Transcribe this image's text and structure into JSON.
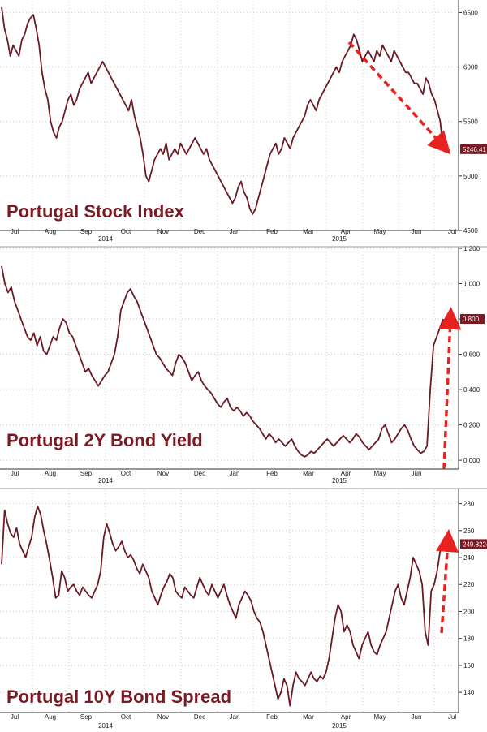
{
  "colors": {
    "line": "#6b1a24",
    "title": "#7a1a22",
    "arrow": "#e8231f",
    "label_bg": "#7a1a22",
    "grid": "#c9c9c9",
    "axis": "#333333"
  },
  "chart_data": [
    {
      "type": "line",
      "title": "Portugal Stock Index",
      "x_axis": {
        "months": [
          "Jul",
          "Aug",
          "Sep",
          "Oct",
          "Nov",
          "Dec",
          "Jan",
          "Feb",
          "Mar",
          "Apr",
          "May",
          "Jun",
          "Jul"
        ],
        "years": [
          "2014",
          "2015"
        ]
      },
      "ylim": [
        4500,
        6600
      ],
      "yticks": [
        "4500",
        "5000",
        "5500",
        "6000",
        "6500"
      ],
      "last_value_label": "5246.41",
      "annotation": "red dashed arrow pointing down from April peak to latest value",
      "series": [
        {
          "values": [
            6550,
            6350,
            6250,
            6100,
            6200,
            6150,
            6100,
            6250,
            6300,
            6400,
            6450,
            6480,
            6350,
            6200,
            5950,
            5800,
            5700,
            5500,
            5400,
            5350,
            5450,
            5500,
            5600,
            5700,
            5750,
            5650,
            5700,
            5800,
            5850,
            5900,
            5950,
            5850,
            5900,
            5950,
            6000,
            6050,
            6000,
            5950,
            5900,
            5850,
            5800,
            5750,
            5700,
            5650,
            5600,
            5700,
            5550,
            5450,
            5350,
            5200,
            5000,
            4950,
            5050,
            5150,
            5200,
            5250,
            5200,
            5300,
            5150,
            5200,
            5250,
            5200,
            5300,
            5250,
            5200,
            5250,
            5300,
            5350,
            5300,
            5250,
            5200,
            5250,
            5150,
            5100,
            5050,
            5000,
            4950,
            4900,
            4850,
            4800,
            4750,
            4800,
            4900,
            4950,
            4850,
            4800,
            4700,
            4650,
            4700,
            4800,
            4900,
            5000,
            5100,
            5200,
            5250,
            5300,
            5200,
            5250,
            5350,
            5300,
            5250,
            5350,
            5400,
            5450,
            5500,
            5550,
            5650,
            5700,
            5650,
            5600,
            5700,
            5750,
            5800,
            5850,
            5900,
            5950,
            6000,
            5950,
            6050,
            6100,
            6150,
            6200,
            6300,
            6250,
            6150,
            6050,
            6100,
            6150,
            6100,
            6050,
            6150,
            6100,
            6200,
            6150,
            6100,
            6050,
            6150,
            6100,
            6050,
            6000,
            5950,
            5950,
            5900,
            5850,
            5850,
            5800,
            5750,
            5900,
            5850,
            5750,
            5700,
            5600,
            5500,
            5246
          ]
        }
      ]
    },
    {
      "type": "line",
      "title": "Portugal 2Y Bond Yield",
      "x_axis": {
        "months": [
          "Jul",
          "Aug",
          "Sep",
          "Oct",
          "Nov",
          "Dec",
          "Jan",
          "Feb",
          "Mar",
          "Apr",
          "May",
          "Jun"
        ],
        "years": [
          "2014",
          "2015"
        ]
      },
      "ylim": [
        -0.05,
        1.2
      ],
      "yticks": [
        "0.000",
        "0.200",
        "0.400",
        "0.600",
        "0.800",
        "1.000",
        "1.200"
      ],
      "last_value_label": "0.800",
      "annotation": "red dashed arrow pointing up at latest spike",
      "series": [
        {
          "values": [
            1.1,
            1.0,
            0.95,
            0.98,
            0.9,
            0.85,
            0.8,
            0.75,
            0.7,
            0.68,
            0.72,
            0.65,
            0.7,
            0.62,
            0.6,
            0.65,
            0.7,
            0.68,
            0.75,
            0.8,
            0.78,
            0.72,
            0.7,
            0.65,
            0.6,
            0.55,
            0.5,
            0.52,
            0.48,
            0.45,
            0.42,
            0.45,
            0.48,
            0.5,
            0.55,
            0.6,
            0.7,
            0.85,
            0.9,
            0.95,
            0.97,
            0.93,
            0.9,
            0.85,
            0.8,
            0.75,
            0.7,
            0.65,
            0.6,
            0.58,
            0.55,
            0.52,
            0.5,
            0.48,
            0.55,
            0.6,
            0.58,
            0.55,
            0.5,
            0.45,
            0.48,
            0.5,
            0.45,
            0.42,
            0.4,
            0.38,
            0.35,
            0.32,
            0.3,
            0.33,
            0.35,
            0.3,
            0.28,
            0.3,
            0.28,
            0.25,
            0.27,
            0.25,
            0.22,
            0.2,
            0.18,
            0.15,
            0.12,
            0.15,
            0.13,
            0.1,
            0.12,
            0.1,
            0.08,
            0.1,
            0.12,
            0.08,
            0.05,
            0.03,
            0.02,
            0.03,
            0.05,
            0.04,
            0.06,
            0.08,
            0.1,
            0.12,
            0.1,
            0.08,
            0.1,
            0.12,
            0.14,
            0.12,
            0.1,
            0.12,
            0.15,
            0.13,
            0.1,
            0.08,
            0.06,
            0.08,
            0.1,
            0.12,
            0.18,
            0.2,
            0.15,
            0.1,
            0.12,
            0.15,
            0.18,
            0.2,
            0.17,
            0.12,
            0.08,
            0.06,
            0.04,
            0.05,
            0.08,
            0.4,
            0.65,
            0.7,
            0.75,
            0.8
          ]
        }
      ]
    },
    {
      "type": "line",
      "title": "Portugal 10Y Bond Spread",
      "x_axis": {
        "months": [
          "Jul",
          "Aug",
          "Sep",
          "Oct",
          "Nov",
          "Dec",
          "Jan",
          "Feb",
          "Mar",
          "Apr",
          "May",
          "Jun",
          "Jul"
        ],
        "years": [
          "2014",
          "2015"
        ]
      },
      "ylim": [
        125,
        290
      ],
      "yticks": [
        "140",
        "160",
        "180",
        "200",
        "220",
        "240",
        "260",
        "280"
      ],
      "last_value_label": "249.8224",
      "annotation": "red dashed arrow pointing up at latest value",
      "series": [
        {
          "values": [
            235,
            275,
            265,
            258,
            255,
            262,
            250,
            245,
            240,
            248,
            255,
            270,
            278,
            272,
            260,
            250,
            238,
            225,
            210,
            212,
            230,
            225,
            215,
            218,
            220,
            215,
            212,
            218,
            215,
            212,
            210,
            215,
            220,
            230,
            255,
            265,
            258,
            250,
            245,
            248,
            252,
            245,
            240,
            242,
            238,
            232,
            228,
            235,
            230,
            225,
            215,
            210,
            205,
            212,
            218,
            222,
            228,
            225,
            215,
            212,
            210,
            218,
            215,
            212,
            210,
            218,
            225,
            220,
            215,
            212,
            220,
            215,
            210,
            215,
            220,
            212,
            205,
            200,
            195,
            205,
            210,
            215,
            212,
            208,
            200,
            195,
            192,
            185,
            175,
            165,
            155,
            145,
            135,
            140,
            150,
            145,
            130,
            145,
            155,
            150,
            148,
            145,
            150,
            155,
            150,
            148,
            152,
            150,
            155,
            165,
            180,
            195,
            205,
            200,
            185,
            190,
            185,
            175,
            170,
            165,
            175,
            180,
            185,
            175,
            170,
            168,
            175,
            180,
            185,
            195,
            205,
            215,
            220,
            210,
            205,
            215,
            225,
            240,
            235,
            230,
            220,
            185,
            175,
            215,
            220,
            230,
            245,
            250
          ]
        }
      ]
    }
  ]
}
